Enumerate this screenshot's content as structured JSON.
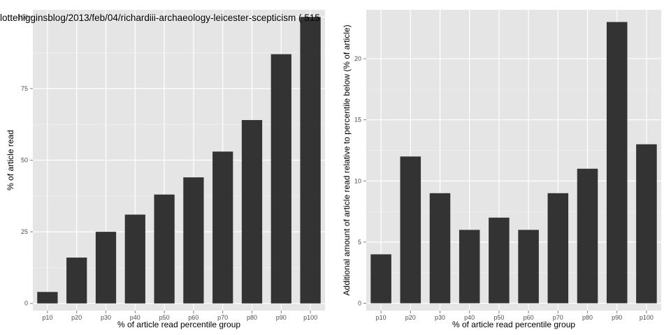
{
  "chart_data": [
    {
      "type": "bar",
      "title": "lottehigginsblog/2013/feb/04/richardiii-archaeology-leicester-scepticism ( 515",
      "xlabel": "% of article read percentile group",
      "ylabel": "% of article read",
      "categories": [
        "p10",
        "p20",
        "p30",
        "p40",
        "p50",
        "p60",
        "p70",
        "p80",
        "p90",
        "p100"
      ],
      "values": [
        4,
        16,
        25,
        31,
        38,
        44,
        53,
        64,
        87,
        100
      ],
      "ylim": [
        -2.5,
        102.5
      ],
      "yticks": [
        0,
        25,
        50,
        75,
        100
      ],
      "grid": true,
      "bar_color": "#333333",
      "panel_color": "#e5e5e5"
    },
    {
      "type": "bar",
      "title": "",
      "xlabel": "% of article read percentile group",
      "ylabel": "Additional amount of article read relative to percentile below (% of article)",
      "categories": [
        "p10",
        "p20",
        "p30",
        "p40",
        "p50",
        "p60",
        "p70",
        "p80",
        "p90",
        "p100"
      ],
      "values": [
        4,
        12,
        9,
        6,
        7,
        6,
        9,
        11,
        23,
        13
      ],
      "ylim": [
        -0.6,
        24.0
      ],
      "yticks": [
        0,
        5,
        10,
        15,
        20
      ],
      "grid": true,
      "bar_color": "#333333",
      "panel_color": "#e5e5e5"
    }
  ]
}
